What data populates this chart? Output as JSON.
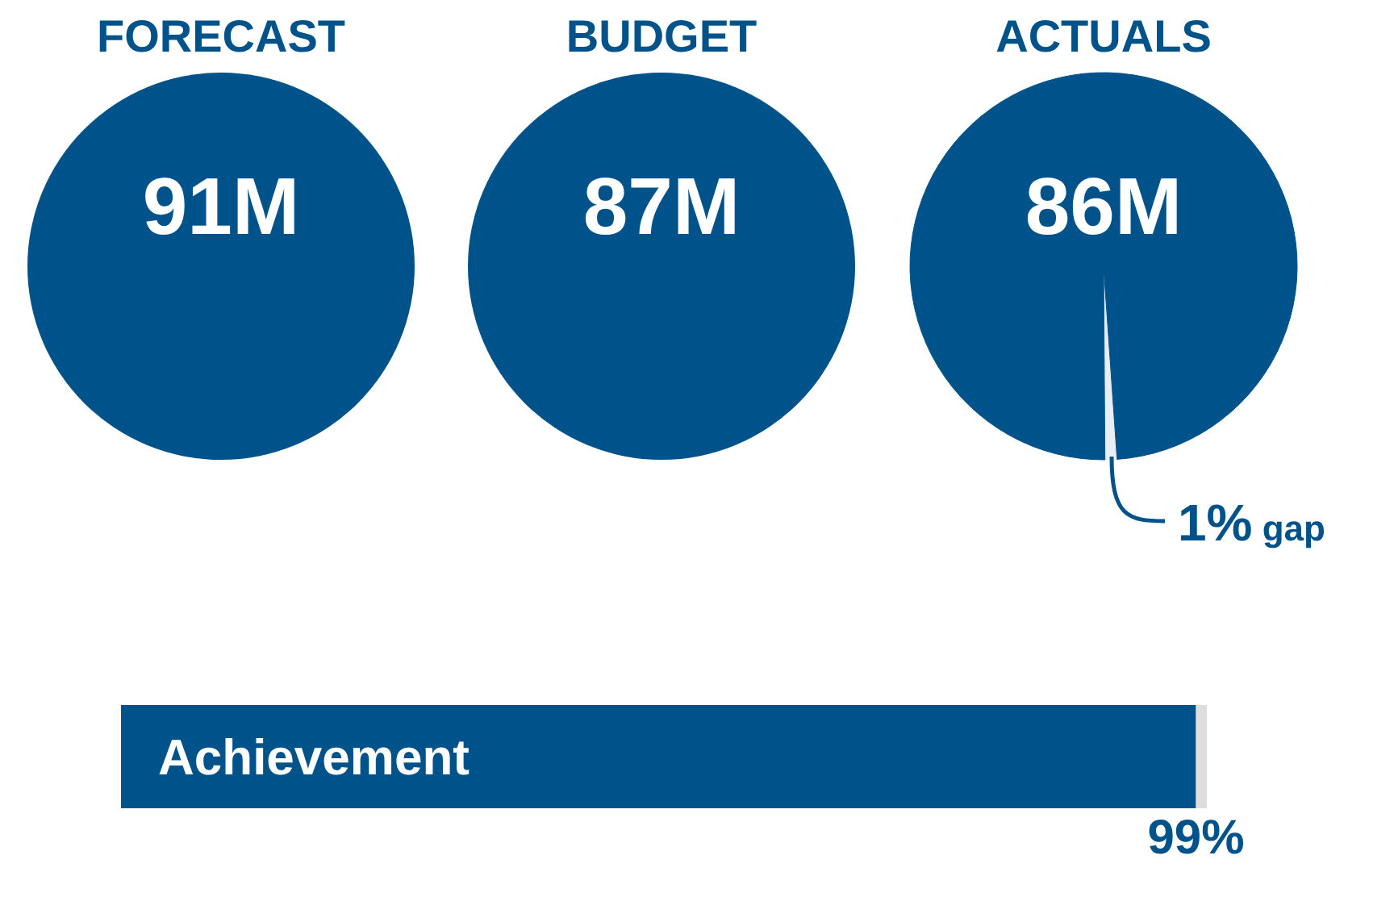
{
  "chart_data": [
    {
      "type": "other",
      "title": "FORECAST",
      "annotations": [
        "91M"
      ],
      "color": "#00538a"
    },
    {
      "type": "other",
      "title": "BUDGET",
      "annotations": [
        "87M"
      ],
      "color": "#00538a"
    },
    {
      "type": "pie",
      "title": "ACTUALS",
      "categories": [
        null,
        null
      ],
      "values": [
        1,
        99
      ],
      "colors": [
        "#e8eef4",
        "#00538a"
      ],
      "annotations": [
        "86M",
        "1% gap"
      ]
    },
    {
      "type": "bar",
      "orientation": "horizontal",
      "stacked": true,
      "categories": [
        "Achievement"
      ],
      "xlim": [
        0,
        100
      ],
      "tick_labels": false,
      "series": [
        {
          "color": "#00538a",
          "values": [
            99
          ],
          "value_labels": [
            "99%"
          ]
        },
        {
          "color": "#dddddd",
          "values": [
            1
          ],
          "value_labels": [
            null
          ]
        }
      ]
    }
  ]
}
